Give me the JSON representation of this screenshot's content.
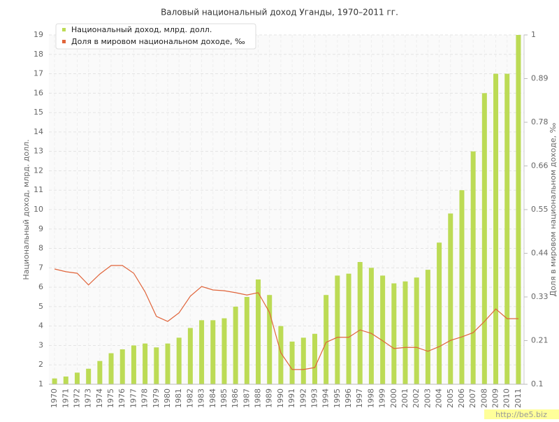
{
  "chart_data": {
    "type": "bar_line",
    "title": "Валовый национальный доход Уганды, 1970–2011 гг.",
    "y_label": "Национальный доход, млрд. долл.",
    "y2_label": "Доля в мировом национальном доходе, ‰",
    "watermark": "http://be5.biz",
    "categories": [
      "1970",
      "1971",
      "1972",
      "1973",
      "1974",
      "1975",
      "1976",
      "1977",
      "1978",
      "1979",
      "1980",
      "1981",
      "1982",
      "1983",
      "1984",
      "1985",
      "1986",
      "1987",
      "1988",
      "1989",
      "1990",
      "1991",
      "1992",
      "1993",
      "1994",
      "1995",
      "1996",
      "1997",
      "1998",
      "1999",
      "2000",
      "2001",
      "2002",
      "2003",
      "2004",
      "2005",
      "2006",
      "2007",
      "2008",
      "2009",
      "2010",
      "2011"
    ],
    "series": [
      {
        "name": "Национальный доход, млрд. долл.",
        "type": "bar",
        "color": "#bcdb55",
        "values": [
          1.3,
          1.4,
          1.6,
          1.8,
          2.2,
          2.6,
          2.8,
          3.0,
          3.1,
          2.9,
          3.1,
          3.4,
          3.9,
          4.3,
          4.3,
          4.4,
          5.0,
          5.5,
          6.4,
          5.6,
          4.0,
          3.2,
          3.4,
          3.6,
          5.6,
          6.6,
          6.7,
          7.3,
          7.0,
          6.6,
          6.2,
          6.3,
          6.5,
          6.9,
          8.3,
          9.8,
          11.0,
          13.0,
          16.0,
          17.0,
          17.0,
          19.0
        ]
      },
      {
        "name": "Доля в мировом национальном доходе, ‰",
        "type": "line",
        "axis": "y2",
        "color": "#e0643a",
        "values": [
          0.397,
          0.39,
          0.386,
          0.356,
          0.384,
          0.406,
          0.406,
          0.386,
          0.338,
          0.275,
          0.262,
          0.284,
          0.327,
          0.352,
          0.343,
          0.341,
          0.336,
          0.33,
          0.336,
          0.285,
          0.181,
          0.138,
          0.138,
          0.143,
          0.208,
          0.221,
          0.221,
          0.24,
          0.231,
          0.212,
          0.192,
          0.195,
          0.195,
          0.185,
          0.197,
          0.213,
          0.222,
          0.233,
          0.262,
          0.294,
          0.269,
          0.269
        ]
      }
    ],
    "ylim": [
      1,
      19
    ],
    "yticks": [
      1,
      2,
      3,
      4,
      5,
      6,
      7,
      8,
      9,
      10,
      11,
      12,
      13,
      14,
      15,
      16,
      17,
      18,
      19
    ],
    "y2lim": [
      0.1,
      1
    ],
    "y2ticks": [
      0.1,
      {
        "value": 0.2125,
        "label": "0.21"
      },
      {
        "value": 0.325,
        "label": "0.33"
      },
      {
        "value": 0.4375,
        "label": "0.44"
      },
      0.55,
      {
        "value": 0.6625,
        "label": "0.66"
      },
      {
        "value": 0.775,
        "label": "0.78"
      },
      {
        "value": 0.8875,
        "label": "0.89"
      },
      1
    ],
    "grid": true
  }
}
